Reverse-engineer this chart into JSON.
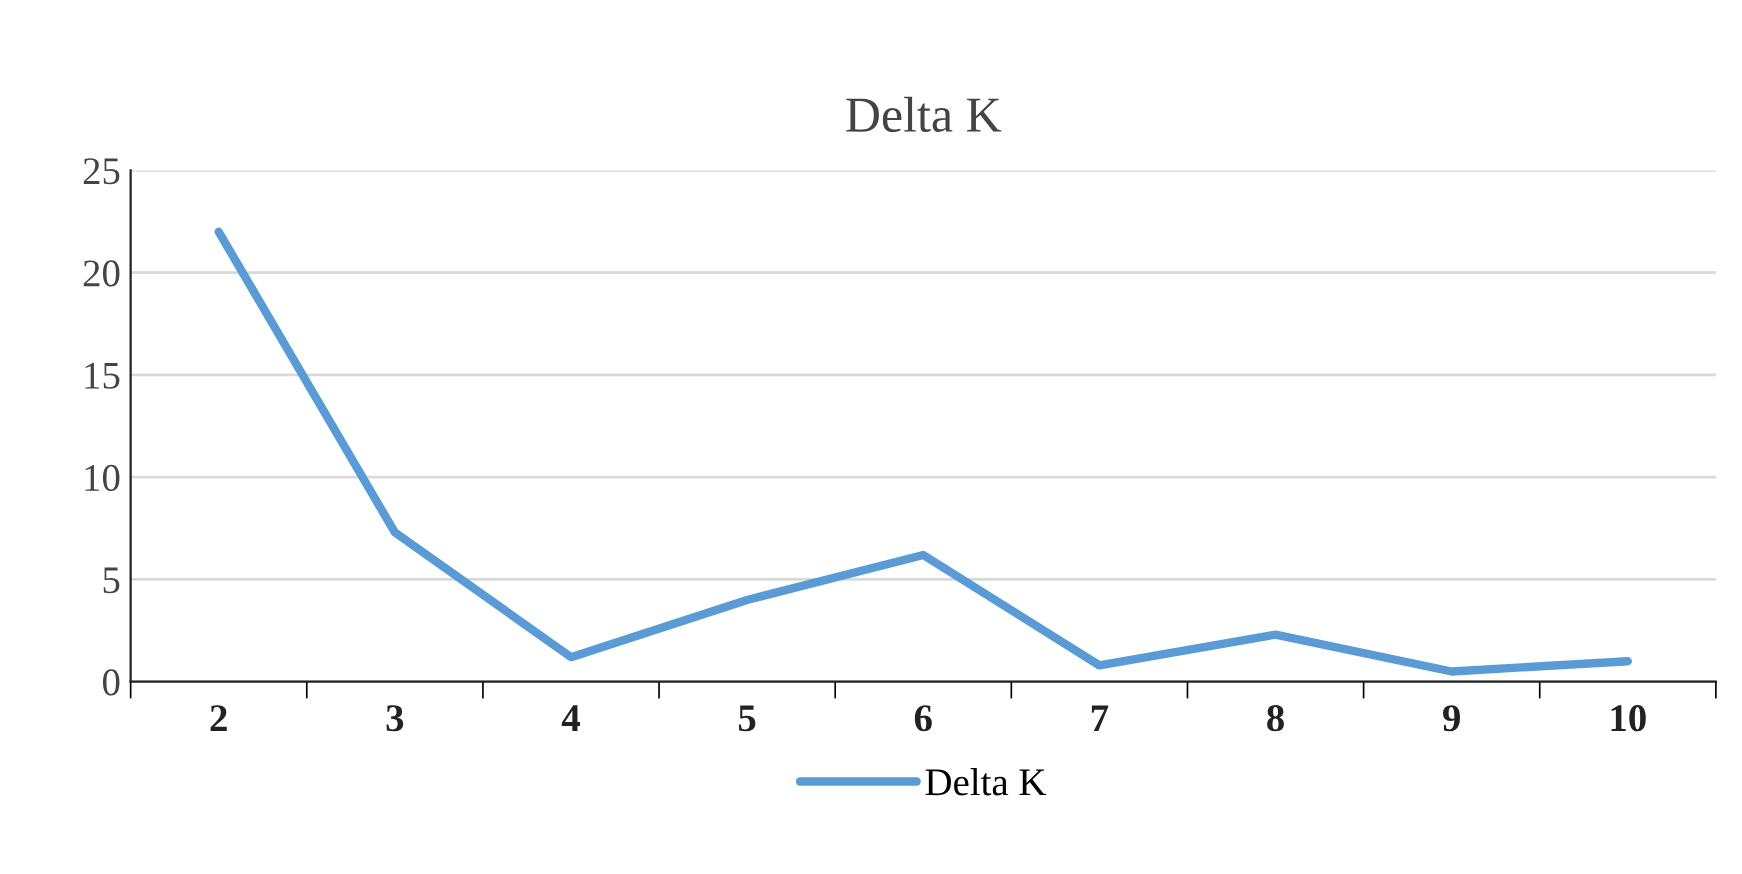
{
  "chart_data": {
    "type": "line",
    "title": "Delta K",
    "categories": [
      "2",
      "3",
      "4",
      "5",
      "6",
      "7",
      "8",
      "9",
      "10"
    ],
    "series": [
      {
        "name": "Delta K",
        "color": "#5b9bd5",
        "values": [
          22.0,
          7.3,
          1.2,
          4.0,
          6.2,
          0.8,
          2.3,
          0.5,
          1.0
        ]
      }
    ],
    "ylim": [
      0,
      25
    ],
    "yticks": [
      0,
      5,
      10,
      15,
      20,
      25
    ],
    "grid": "y",
    "legend": "bottom",
    "marker": "none",
    "line_style": "solid"
  }
}
